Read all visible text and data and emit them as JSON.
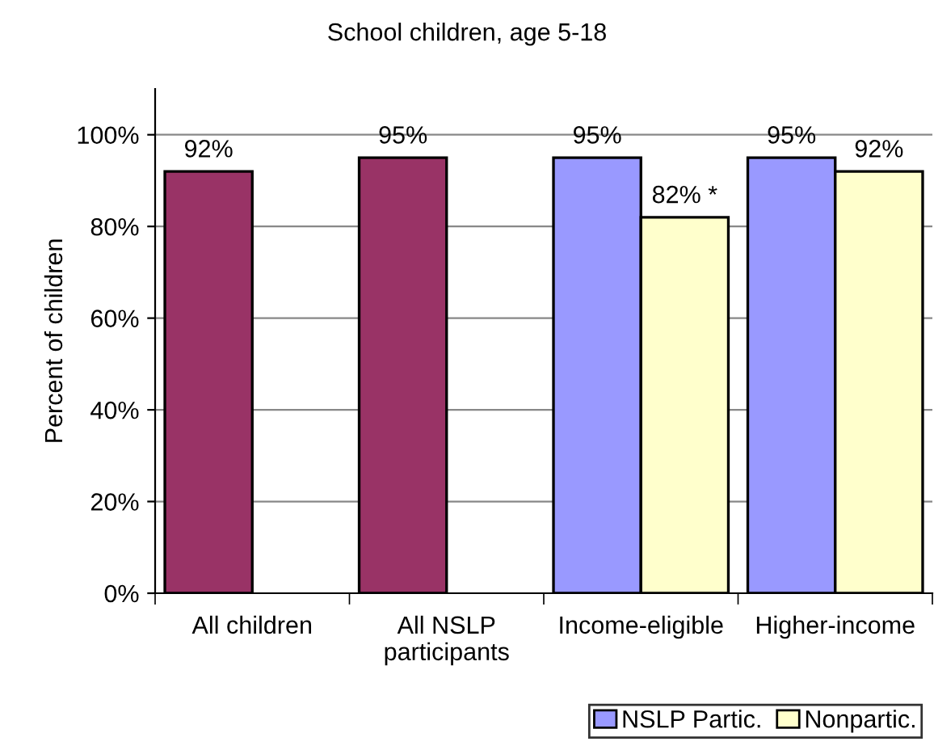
{
  "chart_data": {
    "type": "bar",
    "title": "School children, age 5-18",
    "ylabel": "Percent of children",
    "categories": [
      "All children",
      "All NSLP\nparticipants",
      "Income-eligible",
      "Higher-income"
    ],
    "series": [
      {
        "color": "#993366",
        "values": [
          92,
          95,
          null,
          null
        ],
        "value_labels": [
          "92%",
          "95%",
          null,
          null
        ]
      },
      {
        "name": "NSLP Partic.",
        "color": "#9999ff",
        "values": [
          null,
          null,
          95,
          95
        ],
        "value_labels": [
          null,
          null,
          "95%",
          "95%"
        ]
      },
      {
        "name": "Nonpartic.",
        "color": "#ffffcc",
        "values": [
          null,
          null,
          82,
          92
        ],
        "value_labels": [
          null,
          null,
          "82% *",
          "92%"
        ]
      }
    ],
    "ylim": [
      0,
      110
    ],
    "yticks": [
      {
        "value": 0,
        "label": "0%"
      },
      {
        "value": 20,
        "label": "20%"
      },
      {
        "value": 40,
        "label": "40%"
      },
      {
        "value": 60,
        "label": "60%"
      },
      {
        "value": 80,
        "label": "80%"
      },
      {
        "value": 100,
        "label": "100%"
      }
    ],
    "grid": "y",
    "legend": "bottom right"
  }
}
